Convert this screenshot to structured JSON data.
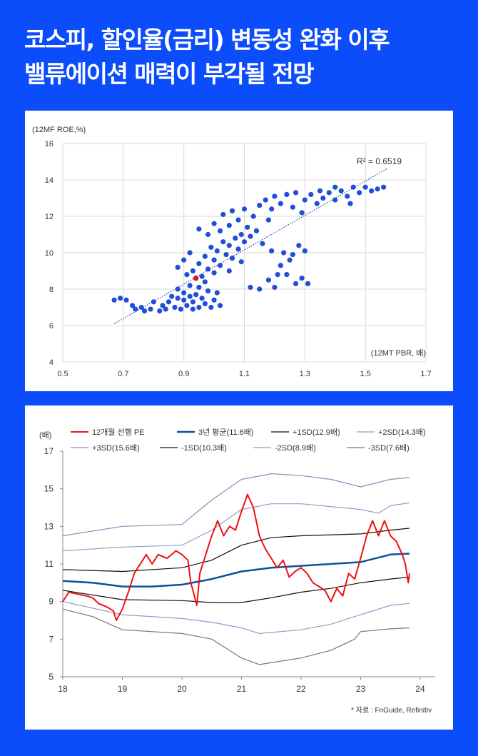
{
  "title": {
    "line1": "코스피, 할인율(금리) 변동성 완화 이후",
    "line2": "밸류에이션 매력이 부각될 전망"
  },
  "source": "* 자료 : FnGuide, Refinitiv",
  "colors": {
    "background": "#0b4dfb",
    "scatter": "#1f4fd6",
    "highlight": "#e8141b"
  },
  "chart_data": [
    {
      "type": "scatter",
      "ylabel": "(12MF ROE,%)",
      "xlabel": "(12MT PBR, 배)",
      "xlim": [
        0.5,
        1.7
      ],
      "ylim": [
        4,
        16
      ],
      "xticks": [
        "0.5",
        "0.7",
        "0.9",
        "1.1",
        "1.3",
        "1.5",
        "1.7"
      ],
      "yticks": [
        "4",
        "6",
        "8",
        "10",
        "12",
        "14",
        "16"
      ],
      "grid": true,
      "annotation": "R² = 0.6519",
      "trendline": [
        [
          0.67,
          6.1
        ],
        [
          1.57,
          14.6
        ]
      ],
      "highlight_point": [
        0.94,
        8.6
      ],
      "points": [
        [
          0.67,
          7.4
        ],
        [
          0.69,
          7.5
        ],
        [
          0.71,
          7.4
        ],
        [
          0.73,
          7.1
        ],
        [
          0.74,
          6.9
        ],
        [
          0.76,
          7.0
        ],
        [
          0.77,
          6.8
        ],
        [
          0.79,
          6.9
        ],
        [
          0.8,
          7.3
        ],
        [
          0.82,
          6.8
        ],
        [
          0.83,
          7.1
        ],
        [
          0.84,
          6.9
        ],
        [
          0.85,
          7.3
        ],
        [
          0.86,
          7.6
        ],
        [
          0.87,
          7.0
        ],
        [
          0.88,
          7.5
        ],
        [
          0.88,
          8.0
        ],
        [
          0.89,
          6.9
        ],
        [
          0.9,
          7.4
        ],
        [
          0.9,
          7.8
        ],
        [
          0.91,
          7.1
        ],
        [
          0.92,
          7.6
        ],
        [
          0.92,
          8.2
        ],
        [
          0.93,
          6.9
        ],
        [
          0.93,
          7.3
        ],
        [
          0.94,
          7.7
        ],
        [
          0.95,
          8.1
        ],
        [
          0.95,
          7.0
        ],
        [
          0.96,
          7.5
        ],
        [
          0.97,
          8.4
        ],
        [
          0.97,
          7.2
        ],
        [
          0.98,
          7.9
        ],
        [
          0.99,
          7.0
        ],
        [
          1.0,
          7.4
        ],
        [
          1.01,
          7.8
        ],
        [
          1.02,
          7.1
        ],
        [
          0.88,
          9.2
        ],
        [
          0.9,
          9.6
        ],
        [
          0.91,
          8.8
        ],
        [
          0.92,
          10.0
        ],
        [
          0.93,
          9.0
        ],
        [
          0.95,
          9.4
        ],
        [
          0.96,
          8.7
        ],
        [
          0.97,
          9.8
        ],
        [
          0.98,
          9.1
        ],
        [
          0.99,
          10.3
        ],
        [
          1.0,
          8.9
        ],
        [
          1.0,
          9.6
        ],
        [
          1.01,
          10.1
        ],
        [
          1.02,
          9.3
        ],
        [
          1.03,
          10.6
        ],
        [
          1.04,
          9.9
        ],
        [
          1.05,
          9.0
        ],
        [
          1.05,
          10.4
        ],
        [
          1.06,
          9.7
        ],
        [
          1.07,
          10.8
        ],
        [
          1.08,
          10.2
        ],
        [
          1.09,
          9.5
        ],
        [
          1.1,
          10.6
        ],
        [
          0.95,
          11.3
        ],
        [
          0.98,
          11.0
        ],
        [
          1.0,
          11.6
        ],
        [
          1.02,
          11.2
        ],
        [
          1.03,
          12.1
        ],
        [
          1.05,
          11.5
        ],
        [
          1.06,
          12.3
        ],
        [
          1.08,
          11.8
        ],
        [
          1.09,
          11.0
        ],
        [
          1.1,
          12.4
        ],
        [
          1.11,
          11.4
        ],
        [
          1.12,
          10.9
        ],
        [
          1.13,
          12.0
        ],
        [
          1.14,
          11.2
        ],
        [
          1.15,
          12.6
        ],
        [
          1.16,
          10.5
        ],
        [
          1.17,
          12.9
        ],
        [
          1.18,
          11.8
        ],
        [
          1.19,
          12.4
        ],
        [
          1.2,
          13.1
        ],
        [
          1.22,
          12.7
        ],
        [
          1.24,
          13.2
        ],
        [
          1.26,
          12.5
        ],
        [
          1.27,
          13.3
        ],
        [
          1.29,
          12.2
        ],
        [
          1.3,
          12.9
        ],
        [
          1.32,
          13.2
        ],
        [
          1.34,
          12.7
        ],
        [
          1.36,
          13.0
        ],
        [
          1.38,
          13.3
        ],
        [
          1.4,
          12.9
        ],
        [
          1.42,
          13.4
        ],
        [
          1.44,
          13.1
        ],
        [
          1.46,
          13.6
        ],
        [
          1.48,
          13.3
        ],
        [
          1.5,
          13.6
        ],
        [
          1.52,
          13.4
        ],
        [
          1.54,
          13.5
        ],
        [
          1.56,
          13.6
        ],
        [
          1.45,
          12.7
        ],
        [
          1.4,
          13.6
        ],
        [
          1.35,
          13.4
        ],
        [
          1.12,
          8.1
        ],
        [
          1.15,
          8.0
        ],
        [
          1.18,
          8.5
        ],
        [
          1.2,
          8.1
        ],
        [
          1.22,
          9.3
        ],
        [
          1.24,
          8.8
        ],
        [
          1.26,
          9.9
        ],
        [
          1.27,
          8.3
        ],
        [
          1.28,
          10.4
        ],
        [
          1.29,
          8.6
        ],
        [
          1.3,
          10.1
        ],
        [
          1.31,
          8.3
        ],
        [
          1.19,
          10.1
        ],
        [
          1.23,
          10.0
        ],
        [
          1.25,
          9.6
        ],
        [
          1.21,
          8.8
        ]
      ]
    },
    {
      "type": "line",
      "ylabel": "(배)",
      "xlim": [
        18,
        24
      ],
      "ylim": [
        5,
        17
      ],
      "xticks": [
        "18",
        "19",
        "20",
        "21",
        "22",
        "23",
        "24"
      ],
      "yticks": [
        "5",
        "7",
        "9",
        "11",
        "13",
        "15",
        "17"
      ],
      "legend_position": "top",
      "series": [
        {
          "name": "12개월 선행 PE",
          "color": "#f01010",
          "width": 2,
          "x": [
            18.0,
            18.1,
            18.25,
            18.4,
            18.5,
            18.6,
            18.75,
            18.85,
            18.9,
            19.0,
            19.1,
            19.2,
            19.3,
            19.4,
            19.5,
            19.6,
            19.75,
            19.9,
            20.0,
            20.1,
            20.15,
            20.25,
            20.3,
            20.4,
            20.5,
            20.6,
            20.7,
            20.8,
            20.9,
            21.0,
            21.1,
            21.2,
            21.3,
            21.4,
            21.5,
            21.6,
            21.7,
            21.8,
            21.9,
            22.0,
            22.1,
            22.2,
            22.3,
            22.4,
            22.5,
            22.6,
            22.7,
            22.8,
            22.9,
            23.0,
            23.1,
            23.2,
            23.3,
            23.4,
            23.5,
            23.6,
            23.7,
            23.75,
            23.8,
            23.82
          ],
          "y": [
            9.0,
            9.5,
            9.4,
            9.3,
            9.2,
            8.9,
            8.7,
            8.5,
            8.0,
            8.6,
            9.5,
            10.5,
            11.0,
            11.5,
            11.0,
            11.5,
            11.3,
            11.7,
            11.5,
            11.2,
            10.0,
            8.8,
            10.5,
            11.5,
            12.5,
            13.3,
            12.5,
            13.0,
            12.8,
            13.8,
            14.7,
            14.0,
            12.5,
            11.8,
            11.3,
            10.8,
            11.2,
            10.3,
            10.6,
            10.8,
            10.5,
            10.0,
            9.8,
            9.6,
            9.0,
            9.7,
            9.3,
            10.5,
            10.2,
            11.3,
            12.5,
            13.3,
            12.5,
            13.3,
            12.5,
            12.2,
            11.5,
            11.0,
            10.0,
            10.5
          ]
        },
        {
          "name": "3년 평균(11.6배)",
          "color": "#0d4f9e",
          "width": 2.5,
          "x": [
            18,
            18.5,
            19,
            19.5,
            20,
            20.5,
            21,
            21.5,
            22,
            22.5,
            23,
            23.5,
            23.82
          ],
          "y": [
            10.1,
            10.0,
            9.8,
            9.8,
            9.9,
            10.2,
            10.6,
            10.8,
            10.9,
            11.0,
            11.1,
            11.5,
            11.55
          ]
        },
        {
          "name": "+1SD(12.9배)",
          "color": "#111111",
          "width": 1.2,
          "x": [
            18,
            19,
            20,
            20.5,
            21,
            21.5,
            22,
            23,
            23.5,
            23.82
          ],
          "y": [
            10.7,
            10.6,
            10.8,
            11.2,
            12.0,
            12.4,
            12.5,
            12.6,
            12.8,
            12.9
          ]
        },
        {
          "name": "+2SD(14.3배)",
          "color": "#8aa0c8",
          "width": 1.2,
          "x": [
            18,
            19,
            20,
            20.5,
            21,
            21.5,
            22,
            23,
            23.3,
            23.5,
            23.82
          ],
          "y": [
            11.7,
            11.9,
            12.0,
            12.8,
            13.9,
            14.2,
            14.2,
            13.9,
            13.7,
            14.1,
            14.25
          ]
        },
        {
          "name": "+3SD(15.6배)",
          "color": "#7f93b8",
          "width": 1.2,
          "x": [
            18,
            19,
            20,
            20.5,
            21,
            21.5,
            22,
            22.5,
            23,
            23.5,
            23.82
          ],
          "y": [
            12.5,
            13.0,
            13.1,
            14.4,
            15.5,
            15.8,
            15.7,
            15.5,
            15.1,
            15.5,
            15.6
          ]
        },
        {
          "name": "-1SD(10.3배)",
          "color": "#111111",
          "width": 1.2,
          "x": [
            18,
            19,
            20,
            20.5,
            21,
            21.5,
            22,
            22.5,
            23,
            23.5,
            23.82
          ],
          "y": [
            9.6,
            9.1,
            9.05,
            8.95,
            8.95,
            9.2,
            9.5,
            9.7,
            10.0,
            10.2,
            10.3
          ]
        },
        {
          "name": "-2SD(8.9배)",
          "color": "#8aa0c8",
          "width": 1.2,
          "x": [
            18,
            19,
            20,
            20.5,
            21,
            21.3,
            22,
            22.5,
            23,
            23.5,
            23.82
          ],
          "y": [
            9.0,
            8.3,
            8.1,
            7.9,
            7.6,
            7.3,
            7.5,
            7.8,
            8.3,
            8.8,
            8.9
          ]
        },
        {
          "name": "-3SD(7.6배)",
          "color": "#777777",
          "width": 1.2,
          "x": [
            18,
            18.5,
            19,
            20,
            20.5,
            21,
            21.3,
            22,
            22.5,
            22.9,
            23,
            23.5,
            23.82
          ],
          "y": [
            8.6,
            8.2,
            7.5,
            7.3,
            7.0,
            6.0,
            5.65,
            6.0,
            6.4,
            7.0,
            7.4,
            7.55,
            7.6
          ]
        }
      ]
    }
  ]
}
